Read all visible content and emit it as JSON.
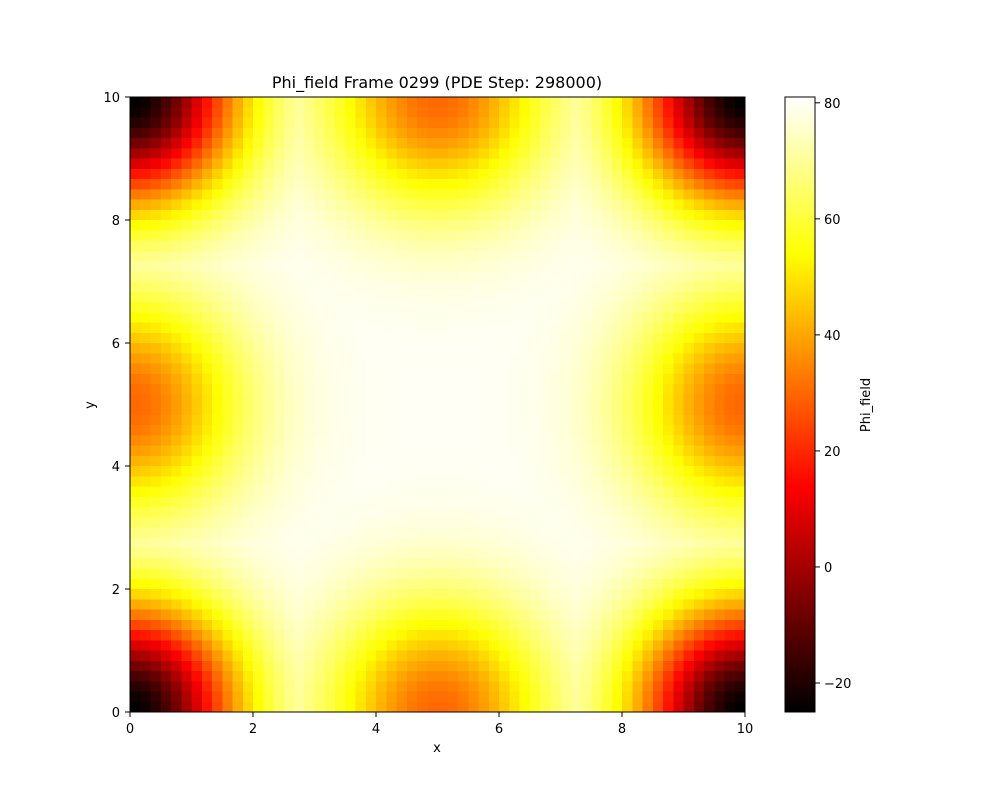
{
  "chart_data": {
    "type": "heatmap",
    "title": "Phi_field Frame 0299 (PDE Step: 298000)",
    "xlabel": "x",
    "ylabel": "y",
    "xlim": [
      0,
      10
    ],
    "ylim": [
      0,
      10
    ],
    "x_ticks": [
      "0",
      "2",
      "4",
      "6",
      "8",
      "10"
    ],
    "y_ticks": [
      "0",
      "2",
      "4",
      "6",
      "8",
      "10"
    ],
    "colormap": "hot",
    "colorbar": {
      "label": "Phi_field",
      "range": [
        -25,
        81
      ],
      "ticks": [
        "−20",
        "0",
        "20",
        "40",
        "60",
        "80"
      ]
    },
    "grid_resolution": 60,
    "field_features": [
      {
        "x": 0,
        "y": 0,
        "value": -25
      },
      {
        "x": 10,
        "y": 0,
        "value": -25
      },
      {
        "x": 0,
        "y": 10,
        "value": -25
      },
      {
        "x": 10,
        "y": 10,
        "value": -25
      },
      {
        "x": 5,
        "y": 0,
        "value": 30
      },
      {
        "x": 5,
        "y": 10,
        "value": 30
      },
      {
        "x": 0,
        "y": 5,
        "value": 30
      },
      {
        "x": 10,
        "y": 5,
        "value": 30
      },
      {
        "x": 5,
        "y": 5,
        "value": 80
      }
    ]
  }
}
